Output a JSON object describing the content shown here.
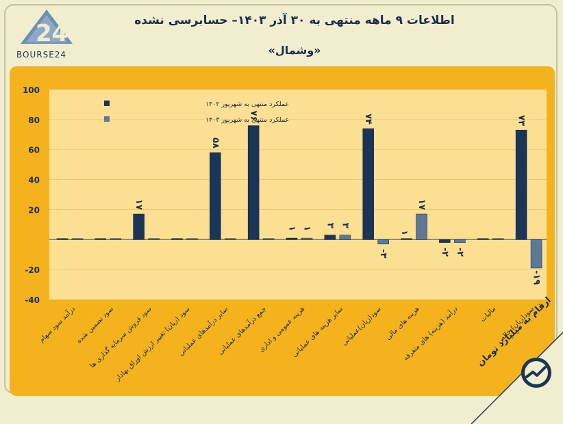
{
  "header": {
    "title": "اطلاعات ۹ ماهه منتهی به ۳۰ آذر ۱۴۰۳– حسابرسی نشده",
    "subtitle": "«وشمال»",
    "logo_text": "BOURSE24"
  },
  "footer": {
    "corner_text": "ارقام به میلیارد تومان"
  },
  "colors": {
    "background": "#f1edcf",
    "panel": "#f4b31c",
    "plot_area": "#fbe093",
    "series_1402": "#1b3558",
    "series_1403": "#5e7899",
    "axis_text": "#1b2c4a"
  },
  "chart_data": {
    "type": "bar",
    "ylim": [
      -40,
      100
    ],
    "yticks": [
      "100",
      "80",
      "60",
      "40",
      "20",
      "",
      "-20",
      "-40"
    ],
    "ytick_values": [
      100,
      80,
      60,
      40,
      20,
      0,
      -20,
      -40
    ],
    "grid": true,
    "legend_position": "top-left",
    "categories": [
      "درآمد سود سهام",
      "سود تضمین شده",
      "سود فروش سرمایه گذاری ها",
      "سود (زیان) تغییر ارزش اوراق بهادار",
      "سایر درآمدهای عملیاتی",
      "جمع درآمدهای عملیاتی",
      "هزینه عمومی و اداری",
      "سایر هزینه های عملیاتی",
      "سود(زیان)عملیاتی",
      "هزینه های مالی",
      "درآمد (هزینه) های متفرقه",
      "مالیات",
      "سود(زیان) خالص"
    ],
    "series": [
      {
        "name": "عملکرد منتهی به شهریور ۱۴۰۲",
        "values": [
          0,
          0,
          17,
          0,
          58,
          76,
          1,
          3,
          74,
          0,
          -2,
          0,
          73
        ],
        "labels": [
          "",
          "",
          "۱۷",
          "",
          "۵۸",
          "۷۶",
          "۱",
          "۳",
          "۷۴",
          "",
          "-۲",
          "",
          "۷۳"
        ]
      },
      {
        "name": "عملکرد منتهی به شهریور ۱۴۰۳",
        "values": [
          0,
          0,
          0,
          0,
          0,
          0,
          1,
          3,
          -3,
          17,
          -2,
          0,
          -19
        ],
        "labels": [
          "",
          "",
          "",
          "",
          "",
          "",
          "۱",
          "۳",
          "-۳",
          "۱۷",
          "-۲",
          "",
          "-۱۹"
        ]
      }
    ],
    "extra_labels": [
      {
        "category_index": 9,
        "text": "۱"
      }
    ]
  }
}
